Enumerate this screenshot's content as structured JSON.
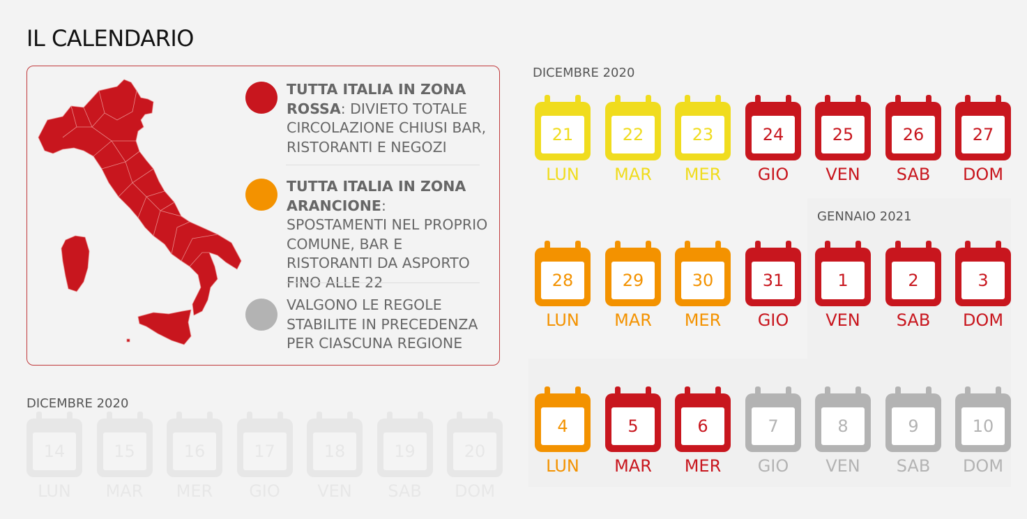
{
  "title": "IL CALENDARIO",
  "legend": [
    {
      "bold": "TUTTA ITALIA IN ZONA ROSSA",
      "rest": ": DIVIETO TOTALE CIRCOLAZIONE CHIUSI BAR, RISTORANTI E NEGOZI",
      "color": "#c8161e"
    },
    {
      "bold": "TUTTA ITALIA IN ZONA ARANCIONE",
      "rest": ": SPOSTAMENTI NEL PROPRIO COMUNE, BAR E RISTORANTI DA ASPORTO FINO ALLE 22",
      "color": "#f39200"
    },
    {
      "bold": "",
      "rest": "VALGONO LE REGOLE STABILITE IN PRECEDENZA PER CIASCUNA REGIONE",
      "color": "#b3b3b3"
    }
  ],
  "month_dec": "DICEMBRE 2020",
  "month_jan": "GENNAIO 2021",
  "faded_month": "DICEMBRE 2020",
  "colors": {
    "yellow": "#f0dc1e",
    "red": "#c8161e",
    "orange": "#f39200",
    "gray": "#b3b3b3"
  },
  "rows": [
    [
      {
        "num": "21",
        "dow": "LUN",
        "zone": "yellow"
      },
      {
        "num": "22",
        "dow": "MAR",
        "zone": "yellow"
      },
      {
        "num": "23",
        "dow": "MER",
        "zone": "yellow"
      },
      {
        "num": "24",
        "dow": "GIO",
        "zone": "red"
      },
      {
        "num": "25",
        "dow": "VEN",
        "zone": "red"
      },
      {
        "num": "26",
        "dow": "SAB",
        "zone": "red"
      },
      {
        "num": "27",
        "dow": "DOM",
        "zone": "red"
      }
    ],
    [
      {
        "num": "28",
        "dow": "LUN",
        "zone": "orange"
      },
      {
        "num": "29",
        "dow": "MAR",
        "zone": "orange"
      },
      {
        "num": "30",
        "dow": "MER",
        "zone": "orange"
      },
      {
        "num": "31",
        "dow": "GIO",
        "zone": "red"
      },
      {
        "num": "1",
        "dow": "VEN",
        "zone": "red"
      },
      {
        "num": "2",
        "dow": "SAB",
        "zone": "red"
      },
      {
        "num": "3",
        "dow": "DOM",
        "zone": "red"
      }
    ],
    [
      {
        "num": "4",
        "dow": "LUN",
        "zone": "orange"
      },
      {
        "num": "5",
        "dow": "MAR",
        "zone": "red"
      },
      {
        "num": "6",
        "dow": "MER",
        "zone": "red"
      },
      {
        "num": "7",
        "dow": "GIO",
        "zone": "gray"
      },
      {
        "num": "8",
        "dow": "VEN",
        "zone": "gray"
      },
      {
        "num": "9",
        "dow": "SAB",
        "zone": "gray"
      },
      {
        "num": "10",
        "dow": "DOM",
        "zone": "gray"
      }
    ]
  ],
  "faded_row": [
    {
      "num": "14",
      "dow": "LUN"
    },
    {
      "num": "15",
      "dow": "MAR"
    },
    {
      "num": "16",
      "dow": "MER"
    },
    {
      "num": "17",
      "dow": "GIO"
    },
    {
      "num": "18",
      "dow": "VEN"
    },
    {
      "num": "19",
      "dow": "SAB"
    },
    {
      "num": "20",
      "dow": "DOM"
    }
  ]
}
